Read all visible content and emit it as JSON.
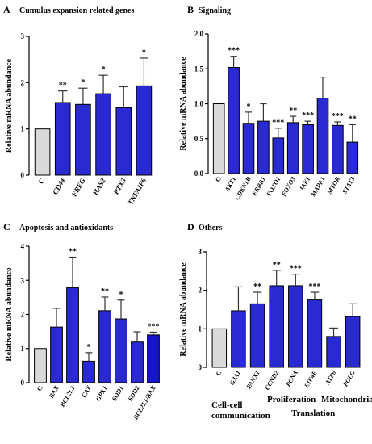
{
  "chart_data": [
    {
      "type": "bar",
      "panel": "A",
      "title": "Cumulus expansion related genes",
      "ylabel": "Relative mRNA abundance",
      "ylim": [
        0,
        3
      ],
      "yticks": [
        "0",
        "1",
        "2",
        "3"
      ],
      "categories": [
        "C",
        "CD44",
        "EREG",
        "HAS2",
        "PTX3",
        "TNFAIP6"
      ],
      "values": [
        1.0,
        1.57,
        1.53,
        1.76,
        1.46,
        1.93
      ],
      "errors": [
        0,
        0.25,
        0.35,
        0.4,
        0.45,
        0.6
      ],
      "significance": [
        "",
        "**",
        "*",
        "*",
        "",
        "*"
      ],
      "colors": [
        "#d9d9d9",
        "#2a2ad2",
        "#2a2ad2",
        "#2a2ad2",
        "#2a2ad2",
        "#2a2ad2"
      ]
    },
    {
      "type": "bar",
      "panel": "B",
      "title": "Signaling",
      "ylabel": "Relative mRNA abundance",
      "ylim": [
        0,
        2.0
      ],
      "yticks": [
        "0.0",
        "0.5",
        "1.0",
        "1.5",
        "2.0"
      ],
      "categories": [
        "C",
        "AKT1",
        "CDKN1B",
        "ERBB1",
        "FOXO1",
        "FOXO3",
        "JAK1",
        "MAPK1",
        "MTOR",
        "STAT3"
      ],
      "values": [
        1.0,
        1.52,
        0.72,
        0.75,
        0.51,
        0.73,
        0.7,
        1.08,
        0.69,
        0.45
      ],
      "errors": [
        0,
        0.16,
        0.16,
        0.25,
        0.14,
        0.09,
        0.05,
        0.3,
        0.05,
        0.25
      ],
      "significance": [
        "",
        "***",
        "*",
        "",
        "***",
        "**",
        "***",
        "",
        "***",
        "**"
      ],
      "colors": [
        "#d9d9d9",
        "#2a2ad2",
        "#2a2ad2",
        "#2a2ad2",
        "#2a2ad2",
        "#2a2ad2",
        "#2a2ad2",
        "#2a2ad2",
        "#2a2ad2",
        "#2a2ad2"
      ]
    },
    {
      "type": "bar",
      "panel": "C",
      "title": "Apoptosis and antioxidants",
      "ylabel": "Relative mRNA abundance",
      "ylim": [
        0,
        4
      ],
      "yticks": [
        "0",
        "1",
        "2",
        "3",
        "4"
      ],
      "categories": [
        "C",
        "BAX",
        "BCL2L1",
        "CAT",
        "GPX1",
        "SOD1",
        "SOD2",
        "BCL2L1/BAX"
      ],
      "values": [
        1.0,
        1.63,
        2.78,
        0.63,
        2.11,
        1.87,
        1.19,
        1.4
      ],
      "errors": [
        0,
        0.55,
        0.9,
        0.25,
        0.4,
        0.55,
        0.3,
        0.08
      ],
      "significance": [
        "",
        "",
        "**",
        "*",
        "**",
        "*",
        "",
        "***"
      ],
      "colors": [
        "#d9d9d9",
        "#2a2ad2",
        "#2a2ad2",
        "#2a2ad2",
        "#2a2ad2",
        "#2a2ad2",
        "#2a2ad2",
        "#1515c8"
      ]
    },
    {
      "type": "bar",
      "panel": "D",
      "title": "Others",
      "ylabel": "Relative mRNA abundance",
      "ylim": [
        0,
        3
      ],
      "yticks": [
        "0",
        "1",
        "2",
        "3"
      ],
      "categories": [
        "C",
        "GJA1",
        "PANX1",
        "CCND2",
        "PCNA",
        "EIF4E",
        "ATP6",
        "POLG"
      ],
      "values": [
        1.0,
        1.47,
        1.65,
        2.12,
        2.12,
        1.75,
        0.8,
        1.32
      ],
      "errors": [
        0,
        0.62,
        0.3,
        0.4,
        0.3,
        0.2,
        0.22,
        0.33
      ],
      "significance": [
        "",
        "",
        "**",
        "**",
        "***",
        "***",
        "",
        ""
      ],
      "colors": [
        "#d9d9d9",
        "#2a2ad2",
        "#2a2ad2",
        "#2a2ad2",
        "#2a2ad2",
        "#2a2ad2",
        "#2a2ad2",
        "#2a2ad2"
      ],
      "groups": [
        "Cell-cell communication",
        "Proliferation",
        "Translation",
        "Mitochondria"
      ]
    }
  ]
}
